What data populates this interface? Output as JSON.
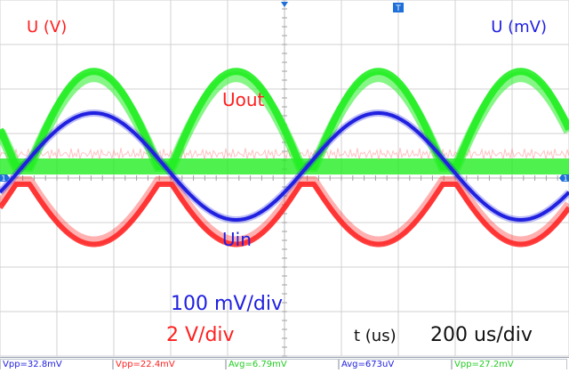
{
  "chart_data": {
    "type": "line",
    "title": "",
    "left_axis_label": "U (V)",
    "right_axis_label": "U (mV)",
    "xlabel": "t (us)",
    "timebase": "200 us/div",
    "scales": [
      {
        "text": "100 mV/div",
        "color": "#2020e0"
      },
      {
        "text": "2 V/div",
        "color": "#ff2020"
      }
    ],
    "annotations": [
      {
        "text": "Uout",
        "color": "#ff2020"
      },
      {
        "text": "Uin",
        "color": "#2020e0"
      }
    ],
    "grid": {
      "x_divs": 10,
      "y_divs": 8,
      "visible": true
    },
    "xlim": [
      0,
      2000
    ],
    "x_unit": "us",
    "series": [
      {
        "name": "Uin",
        "color": "#2020e0",
        "axis": "right",
        "unit": "mV",
        "shape": "sine",
        "amplitude": 150,
        "period": 1000,
        "crossing": 2.4,
        "first_peak_t": 330
      },
      {
        "name": "Uout",
        "color": "#22ee22",
        "negative_color": "#ff2020",
        "axis": "left",
        "unit": "V",
        "shape": "full-wave rectified (peak when |Uin| is high)",
        "positive_peak_div": 2.8,
        "negative_peak_div": 1.5
      }
    ],
    "measurements": [
      {
        "text": "Vpp=32.8mV",
        "color": "#2020e0"
      },
      {
        "text": "Vpp=22.4mV",
        "color": "#ff2020"
      },
      {
        "text": "Avg=6.79mV",
        "color": "#22cc22"
      },
      {
        "text": "Avg=673uV",
        "color": "#2020e0"
      },
      {
        "text": "Vpp=27.2mV",
        "color": "#22cc22"
      }
    ],
    "channel_markers": [
      {
        "text": "T",
        "color": "#1e6fd9"
      },
      {
        "text": "1",
        "color": "#1e6fd9"
      },
      {
        "text": "1",
        "color": "#1e6fd9"
      }
    ]
  }
}
